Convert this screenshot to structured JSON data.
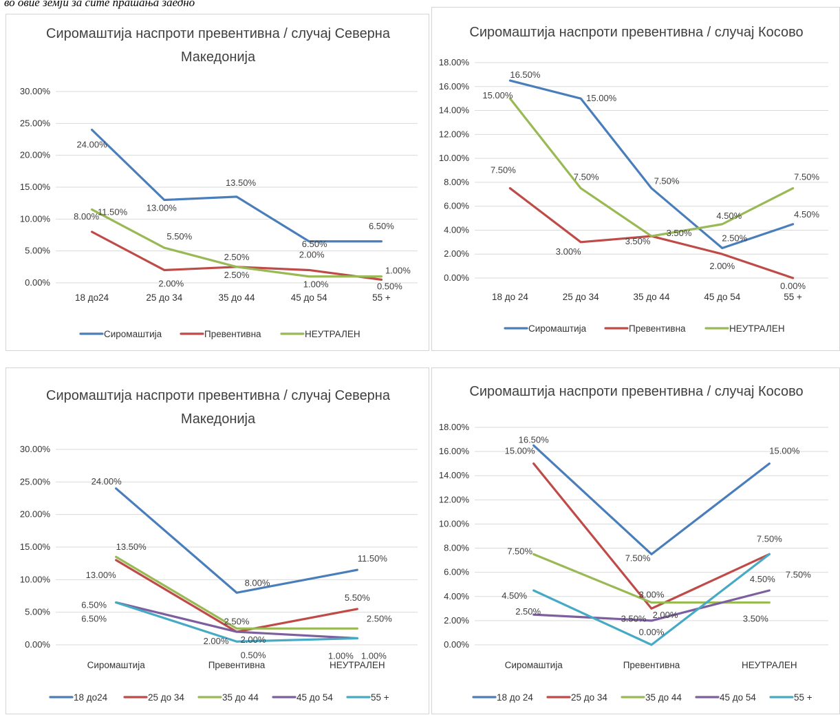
{
  "caption": "во овие земји за ситe прашања заедно",
  "colors": {
    "blue": "#4A7EBB",
    "red": "#BE4B48",
    "green": "#98B954",
    "purple": "#7D5FA0",
    "teal": "#46AAC5"
  },
  "chart_data": [
    {
      "type": "line",
      "title_lines": [
        "Сиромаштија наспроти превентивна / случај Северна",
        "Македонија"
      ],
      "categories": [
        "18 до24",
        "25 до 34",
        "35 до 44",
        "45 до 54",
        "55 +"
      ],
      "ylim": [
        0,
        30
      ],
      "yticks": [
        "0.00%",
        "5.00%",
        "10.00%",
        "15.00%",
        "20.00%",
        "25.00%",
        "30.00%"
      ],
      "grid": true,
      "legend": "bottom",
      "series": [
        {
          "name": "Сиромаштија",
          "color": "#4A7EBB",
          "values": [
            24.0,
            13.0,
            13.5,
            6.5,
            6.5
          ],
          "labels": [
            "24.00%",
            "13.00%",
            "13.50%",
            "6.50%",
            "6.50%"
          ]
        },
        {
          "name": "Превентивна",
          "color": "#BE4B48",
          "values": [
            8.0,
            2.0,
            2.5,
            2.0,
            0.5
          ],
          "labels": [
            "8.00%",
            "2.00%",
            "2.50%",
            "2.00%",
            "0.50%"
          ]
        },
        {
          "name": "НЕУТРАЛЕН",
          "color": "#98B954",
          "values": [
            11.5,
            5.5,
            2.5,
            1.0,
            1.0
          ],
          "labels": [
            "11.50%",
            "5.50%",
            "2.50%",
            "1.00%",
            "1.00%"
          ]
        }
      ]
    },
    {
      "type": "line",
      "title_lines": [
        "Сиромаштија наспроти превентивна / случај Косово"
      ],
      "categories": [
        "18 до 24",
        "25 до 34",
        "35 до 44",
        "45 до 54",
        "55 +"
      ],
      "ylim": [
        0,
        18
      ],
      "yticks": [
        "0.00%",
        "2.00%",
        "4.00%",
        "6.00%",
        "8.00%",
        "10.00%",
        "12.00%",
        "14.00%",
        "16.00%",
        "18.00%"
      ],
      "grid": true,
      "legend": "bottom",
      "series": [
        {
          "name": "Сиромаштија",
          "color": "#4A7EBB",
          "values": [
            16.5,
            15.0,
            7.5,
            2.5,
            4.5
          ],
          "labels": [
            "16.50%",
            "15.00%",
            "7.50%",
            "2.50%",
            "4.50%"
          ]
        },
        {
          "name": "Превентивна",
          "color": "#BE4B48",
          "values": [
            7.5,
            3.0,
            3.5,
            2.0,
            0.0
          ],
          "labels": [
            "7.50%",
            "3.00%",
            "3.50%",
            "2.00%",
            "0.00%"
          ]
        },
        {
          "name": "НЕУТРАЛЕН",
          "color": "#98B954",
          "values": [
            15.0,
            7.5,
            3.5,
            4.5,
            7.5
          ],
          "labels": [
            "15.00%",
            "7.50%",
            "3.50%",
            "4.50%",
            "7.50%"
          ]
        }
      ]
    },
    {
      "type": "line",
      "title_lines": [
        "Сиромаштија наспроти превентивна / случај Северна",
        "Македонија"
      ],
      "categories": [
        "Сиромаштија",
        "Превентивна",
        "НЕУТРАЛЕН"
      ],
      "ylim": [
        0,
        30
      ],
      "yticks": [
        "0.00%",
        "5.00%",
        "10.00%",
        "15.00%",
        "20.00%",
        "25.00%",
        "30.00%"
      ],
      "grid": true,
      "legend": "bottom",
      "series": [
        {
          "name": "18 до24",
          "color": "#4A7EBB",
          "values": [
            24.0,
            8.0,
            11.5
          ],
          "labels": [
            "24.00%",
            "8.00%",
            "11.50%"
          ]
        },
        {
          "name": "25 до 34",
          "color": "#BE4B48",
          "values": [
            13.0,
            2.0,
            5.5
          ],
          "labels": [
            "13.00%",
            "2.00%",
            "5.50%"
          ]
        },
        {
          "name": "35 до 44",
          "color": "#98B954",
          "values": [
            13.5,
            2.5,
            2.5
          ],
          "labels": [
            "13.50%",
            "2.50%",
            "2.50%"
          ]
        },
        {
          "name": "45 до 54",
          "color": "#7D5FA0",
          "values": [
            6.5,
            2.0,
            1.0
          ],
          "labels": [
            "6.50%",
            "2.00%",
            "1.00%"
          ]
        },
        {
          "name": "55 +",
          "color": "#46AAC5",
          "values": [
            6.5,
            0.5,
            1.0
          ],
          "labels": [
            "6.50%",
            "0.50%",
            "1.00%"
          ]
        }
      ]
    },
    {
      "type": "line",
      "title_lines": [
        "Сиромаштија наспроти превентивна / случај Косово"
      ],
      "categories": [
        "Сиромаштија",
        "Превентивна",
        "НЕУТРАЛЕН"
      ],
      "ylim": [
        0,
        18
      ],
      "yticks": [
        "0.00%",
        "2.00%",
        "4.00%",
        "6.00%",
        "8.00%",
        "10.00%",
        "12.00%",
        "14.00%",
        "16.00%",
        "18.00%"
      ],
      "grid": true,
      "legend": "bottom",
      "series": [
        {
          "name": "18 до 24",
          "color": "#4A7EBB",
          "values": [
            16.5,
            7.5,
            15.0
          ],
          "labels": [
            "16.50%",
            "7.50%",
            "15.00%"
          ]
        },
        {
          "name": "25 до 34",
          "color": "#BE4B48",
          "values": [
            15.0,
            3.0,
            7.5
          ],
          "labels": [
            "15.00%",
            "3.00%",
            "7.50%"
          ]
        },
        {
          "name": "35 до 44",
          "color": "#98B954",
          "values": [
            7.5,
            3.5,
            3.5
          ],
          "labels": [
            "7.50%",
            "3.50%",
            "3.50%"
          ]
        },
        {
          "name": "45 до 54",
          "color": "#7D5FA0",
          "values": [
            2.5,
            2.0,
            4.5
          ],
          "labels": [
            "2.50%",
            "2.00%",
            "4.50%"
          ]
        },
        {
          "name": "55 +",
          "color": "#46AAC5",
          "values": [
            4.5,
            0.0,
            7.5
          ],
          "labels": [
            "4.50%",
            "0.00%",
            "7.50%"
          ]
        }
      ]
    }
  ]
}
